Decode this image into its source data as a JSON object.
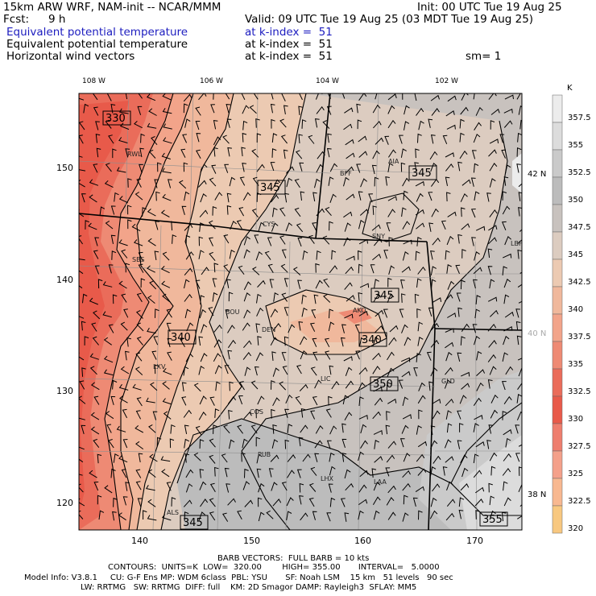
{
  "header": {
    "model": "15km ARW WRF, NAM-init -- NCAR/MMM",
    "init": "Init: 00 UTC Tue 19 Aug 25",
    "fcst_label": "Fcst:",
    "fcst_value": "9 h",
    "valid": "Valid: 09 UTC Tue 19 Aug 25 (03 MDT Tue 19 Aug 25)",
    "line1_field": "Equivalent potential temperature",
    "line1_level": "at k-index =  51",
    "line2_field": "Equivalent potential temperature",
    "line2_level": "at k-index =  51",
    "line3_field": "Horizontal wind vectors",
    "line3_level": "at k-index =  51",
    "smooth": "sm= 1"
  },
  "map": {
    "lon_labels": [
      "108 W",
      "106 W",
      "104 W",
      "102 W"
    ],
    "lat_labels": [
      "42 N",
      "40 N",
      "38 N"
    ],
    "x_ticks": [
      "140",
      "150",
      "160",
      "170"
    ],
    "y_ticks": [
      "150",
      "140",
      "130",
      "120"
    ],
    "stations": [
      "RWL",
      "BFF",
      "AIA",
      "CYS",
      "SNY",
      "LBF",
      "SBS",
      "BOU",
      "DEN",
      "AKO",
      "LXV",
      "LIC",
      "GLD",
      "COS",
      "PUB",
      "LHX",
      "LAA",
      "ALS"
    ],
    "contour_labels": [
      "330",
      "345",
      "345",
      "345",
      "340",
      "340",
      "350",
      "345",
      "355"
    ],
    "colors": {
      "c320": "#f8c880",
      "c322": "#f8b890",
      "c325": "#f4a08a",
      "c327": "#ee7e6e",
      "c330": "#e85a4a",
      "c332": "#ea6c5a",
      "c335": "#ee8a74",
      "c337": "#f2a48a",
      "c340": "#f0b89c",
      "c342": "#eccab2",
      "c345": "#dcccc0",
      "c347": "#c8c2be",
      "c350": "#bcbcbc",
      "c352": "#cacaca",
      "c355": "#dcdcdc",
      "c357": "#ececec"
    }
  },
  "colorbar": {
    "unit": "K",
    "labels": [
      "357.5",
      "355",
      "352.5",
      "350",
      "347.5",
      "345",
      "342.5",
      "340",
      "337.5",
      "335",
      "332.5",
      "330",
      "327.5",
      "325",
      "322.5",
      "320"
    ]
  },
  "footer": {
    "barb": "BARB VECTORS:  FULL BARB = 10 kts",
    "contours": "CONTOURS:  UNITS=K  LOW=  320.00        HIGH= 355.00       INTERVAL=   5.0000",
    "model_info": "Model Info: V3.8.1     CU: G-F Ens MP: WDM 6class  PBL: YSU       SF: Noah LSM    15 km   51 levels   90 sec",
    "model_info2": "LW: RRTMG   SW: RRTMG  DIFF: full    KM: 2D Smagor DAMP: Rayleigh3  SFLAY: MM5"
  }
}
